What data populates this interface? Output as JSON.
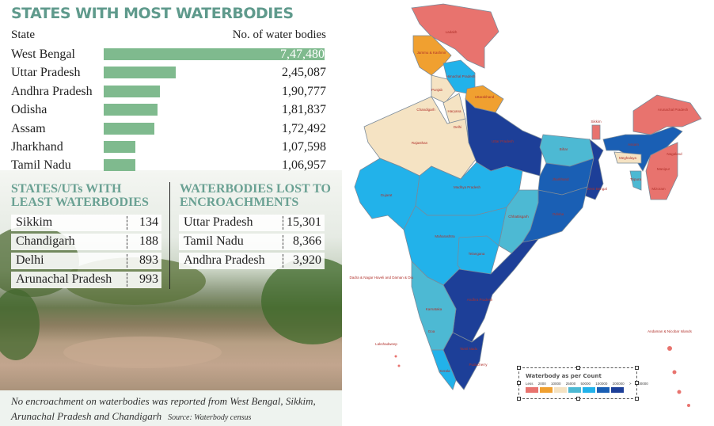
{
  "left_panel": {
    "title": "STATES WITH MOST WATERBODIES",
    "col_state": "State",
    "col_count": "No. of water bodies",
    "caption": "No encroachment on waterbodies was reported from West Bengal, Sikkim, Arunachal Pradesh and Chandigarh",
    "source": "Source: Waterbody census"
  },
  "chart_data": {
    "type": "bar",
    "title": "STATES WITH MOST WATERBODIES",
    "xlabel": "No. of water bodies",
    "ylabel": "State",
    "categories": [
      "West Bengal",
      "Uttar Pradesh",
      "Andhra Pradesh",
      "Odisha",
      "Assam",
      "Jharkhand",
      "Tamil Nadu"
    ],
    "values": [
      747480,
      245087,
      190777,
      181837,
      172492,
      107598,
      106957
    ],
    "labels": [
      "7,47,480",
      "2,45,087",
      "1,90,777",
      "1,81,837",
      "1,72,492",
      "1,07,598",
      "1,06,957"
    ],
    "color": "#7fba8e"
  },
  "least": {
    "title_line1": "STATES/UTs WITH",
    "title_line2": "LEAST WATERBODIES",
    "rows": [
      {
        "name": "Sikkim",
        "value": "134"
      },
      {
        "name": "Chandigarh",
        "value": "188"
      },
      {
        "name": "Delhi",
        "value": "893"
      },
      {
        "name": "Arunachal Pradesh",
        "value": "993"
      }
    ]
  },
  "lost": {
    "title_line1": "WATERBODIES LOST TO",
    "title_line2": "ENCROACHMENTS",
    "rows": [
      {
        "name": "Uttar Pradesh",
        "value": "15,301"
      },
      {
        "name": "Tamil Nadu",
        "value": "8,366"
      },
      {
        "name": "Andhra Pradesh",
        "value": "3,920"
      }
    ]
  },
  "map": {
    "legend_title": "Waterbody as per Count",
    "legend_ticks": "Less 2000 10000 25000 50000 100000 200000 > 200000",
    "legend_colors": [
      "#e8736e",
      "#f0a030",
      "#f5e3c3",
      "#4db9d3",
      "#22b2ea",
      "#1a5fb4",
      "#1d3f98"
    ],
    "labels": [
      "Ladakh",
      "Jammu & Kashmir",
      "Himachal Pradesh",
      "Punjab",
      "Chandigarh",
      "Uttarakhand",
      "Haryana",
      "Delhi",
      "Rajasthan",
      "Uttar Pradesh",
      "Bihar",
      "Sikkim",
      "Arunachal Pradesh",
      "Assam",
      "Meghalaya",
      "Nagaland",
      "Manipur",
      "Tripura",
      "Mizoram",
      "Gujarat",
      "Madhya Pradesh",
      "Jharkhand",
      "West Bengal",
      "Chhattisgarh",
      "Odisha",
      "Maharashtra",
      "Telangana",
      "Dadra & Nagar Haveli and Daman & Diu",
      "Karnataka",
      "Andhra Pradesh",
      "Goa",
      "Tamil Nadu",
      "Kerala",
      "Puducherry",
      "Lakshadweep",
      "Andaman & Nicobar Islands"
    ]
  }
}
